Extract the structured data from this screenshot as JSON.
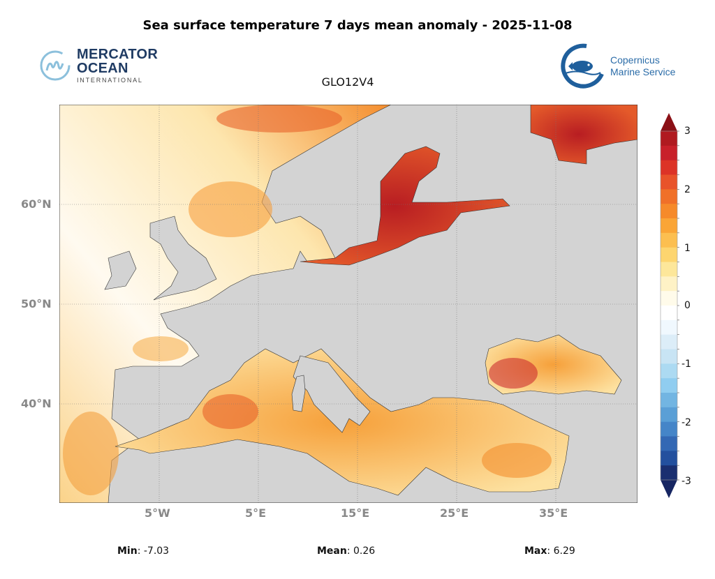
{
  "title": "Sea surface temperature 7 days mean anomaly - 2025-11-08",
  "model": "GLO12V4",
  "logos": {
    "mercator": {
      "line1": "MERCATOR",
      "line2": "OCEAN",
      "line3": "INTERNATIONAL"
    },
    "copernicus": {
      "line1": "Copernicus",
      "line2": "Marine Service"
    }
  },
  "map": {
    "lat_ticks": [
      "60°N",
      "50°N",
      "40°N"
    ],
    "lon_ticks": [
      "5°W",
      "5°E",
      "15°E",
      "25°E",
      "35°E"
    ],
    "land_color": "#d3d3d3"
  },
  "colorbar": {
    "labels": [
      "3",
      "2",
      "1",
      "0",
      "-1",
      "-2",
      "-3"
    ],
    "range": [
      -3,
      3
    ],
    "step": 0.25,
    "colors_top_to_bottom": [
      "#b01a20",
      "#c8202a",
      "#dc3327",
      "#e8532a",
      "#f07028",
      "#f68a2a",
      "#faa536",
      "#fcbf50",
      "#fdd56f",
      "#fde79a",
      "#fef2c6",
      "#fffbea",
      "#ffffff",
      "#f0f8fe",
      "#dcedf8",
      "#c8e4f4",
      "#acdaf2",
      "#90cdf0",
      "#72b5e2",
      "#5a9fd6",
      "#4585c8",
      "#3368b4",
      "#23509e",
      "#1a2f70"
    ],
    "extend_top": "#8b1016",
    "extend_bottom": "#172662"
  },
  "stats": {
    "min_label": "Min",
    "min_value": ": -7.03",
    "mean_label": "Mean",
    "mean_value": ": 0.26",
    "max_label": "Max",
    "max_value": ": 6.29"
  }
}
